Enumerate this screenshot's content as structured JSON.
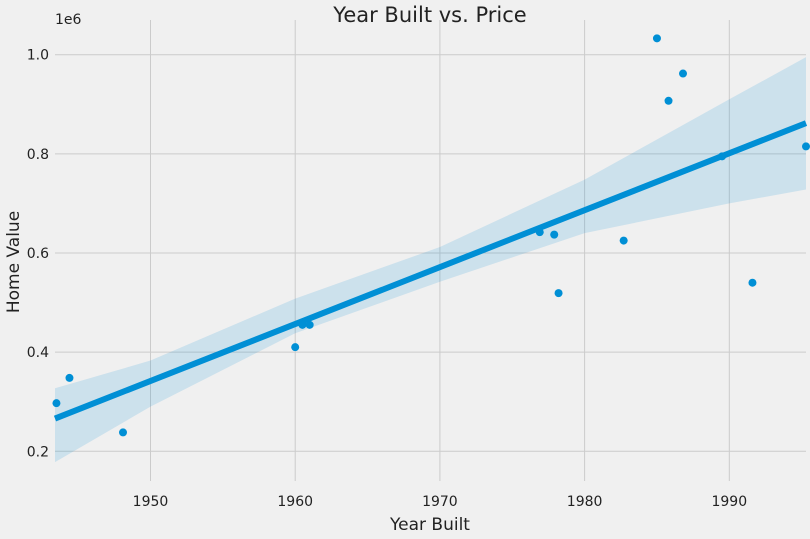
{
  "chart_data": {
    "type": "scatter",
    "title": "Year Built vs. Price",
    "xlabel": "Year Built",
    "ylabel": "Home Value",
    "y_offset_label": "1e6",
    "xlim": [
      1943.4,
      1995.3
    ],
    "ylim": [
      0.14,
      1.07
    ],
    "x_ticks": [
      1950,
      1960,
      1970,
      1980,
      1990
    ],
    "x_tick_labels": [
      "1950",
      "1960",
      "1970",
      "1980",
      "1990"
    ],
    "y_ticks": [
      0.2,
      0.4,
      0.6,
      0.8,
      1.0
    ],
    "y_tick_labels": [
      "0.2",
      "0.4",
      "0.6",
      "0.8",
      "1.0"
    ],
    "grid": true,
    "colors": {
      "background": "#f0f0f0",
      "grid": "#cbcbcb",
      "points": "#008fd5",
      "line": "#008fd5",
      "band": "#008fd5"
    },
    "points": [
      {
        "x": 1943.5,
        "y": 0.297
      },
      {
        "x": 1944.4,
        "y": 0.348
      },
      {
        "x": 1948.1,
        "y": 0.238
      },
      {
        "x": 1960.0,
        "y": 0.41
      },
      {
        "x": 1960.5,
        "y": 0.455
      },
      {
        "x": 1961.0,
        "y": 0.455
      },
      {
        "x": 1976.9,
        "y": 0.642
      },
      {
        "x": 1977.9,
        "y": 0.637
      },
      {
        "x": 1978.2,
        "y": 0.519
      },
      {
        "x": 1982.7,
        "y": 0.625
      },
      {
        "x": 1985.0,
        "y": 1.033
      },
      {
        "x": 1985.8,
        "y": 0.907
      },
      {
        "x": 1986.8,
        "y": 0.962
      },
      {
        "x": 1989.5,
        "y": 0.795
      },
      {
        "x": 1991.6,
        "y": 0.54
      },
      {
        "x": 1995.3,
        "y": 0.815
      }
    ],
    "regression": {
      "x": [
        1943.4,
        1995.3
      ],
      "y": [
        0.266,
        0.862
      ]
    },
    "confidence_band": {
      "x": [
        1943.4,
        1950,
        1960,
        1970,
        1980,
        1990,
        1995.3
      ],
      "lower": [
        0.178,
        0.29,
        0.438,
        0.542,
        0.64,
        0.7,
        0.728
      ],
      "upper": [
        0.327,
        0.383,
        0.508,
        0.612,
        0.748,
        0.91,
        0.995
      ]
    }
  }
}
